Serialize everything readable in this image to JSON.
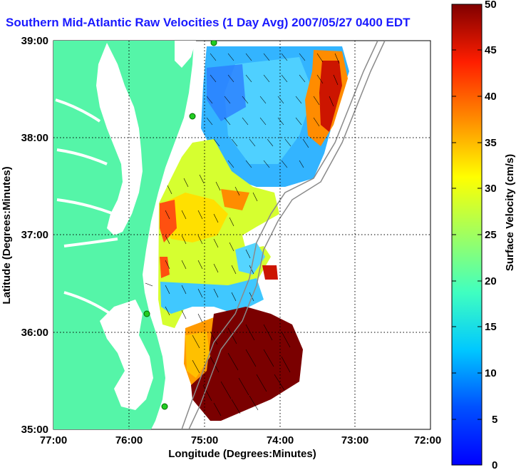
{
  "title": "Southern Mid-Atlantic Raw Velocities (1 Day Avg) 2007/05/27 0400 EDT",
  "xlabel": "Longitude (Degrees:Minutes)",
  "ylabel": "Latitude (Degrees:Minutes)",
  "colorbar_label": "Surface Velocity (cm/s)",
  "x_ticks": [
    "77:00",
    "76:00",
    "75:00",
    "74:00",
    "73:00",
    "72:00"
  ],
  "y_ticks": [
    "39:00",
    "38:00",
    "37:00",
    "36:00",
    "35:00"
  ],
  "colorbar_ticks": [
    "50",
    "45",
    "40",
    "35",
    "30",
    "25",
    "20",
    "15",
    "10",
    "5",
    "0"
  ],
  "colors": {
    "land": "#55f5a8",
    "water": "#ffffff",
    "title": "#1a1aff",
    "grid": "#000000"
  }
}
